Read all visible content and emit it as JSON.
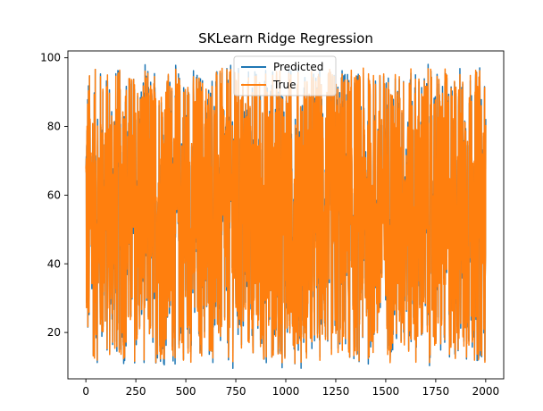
{
  "chart_data": {
    "type": "line",
    "title": "SKLearn Ridge Regression",
    "xlabel": "",
    "ylabel": "",
    "xlim": [
      -90,
      2090
    ],
    "ylim": [
      6.5,
      102
    ],
    "x_ticks": [
      0,
      250,
      500,
      750,
      1000,
      1250,
      1500,
      1750,
      2000
    ],
    "x_tick_labels": [
      "0",
      "250",
      "500",
      "750",
      "1000",
      "1250",
      "1500",
      "1750",
      "2000"
    ],
    "y_ticks": [
      20,
      40,
      60,
      80,
      100
    ],
    "y_tick_labels": [
      "20",
      "40",
      "60",
      "80",
      "100"
    ],
    "grid": false,
    "legend_position": "top-center",
    "x_range": [
      0,
      2000
    ],
    "num_points": 2000,
    "value_range": [
      11,
      97
    ],
    "series": [
      {
        "name": "Predicted",
        "color": "#1f77b4"
      },
      {
        "name": "True",
        "color": "#ff7f0e"
      }
    ]
  }
}
